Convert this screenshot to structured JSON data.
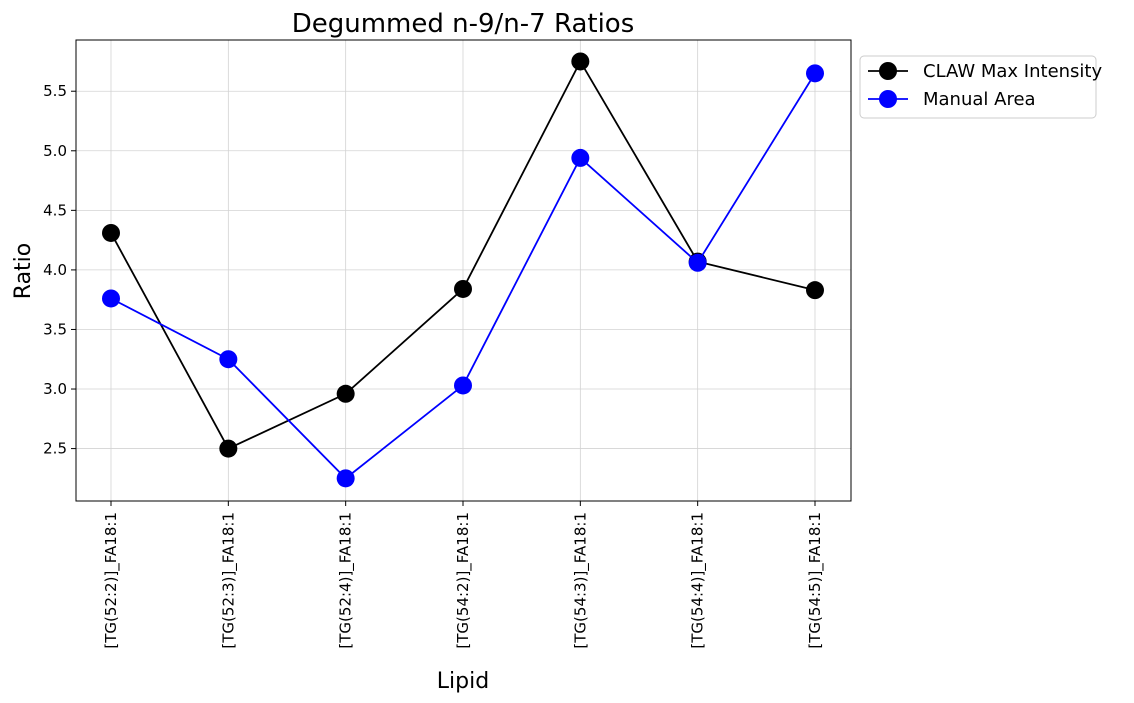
{
  "chart_data": {
    "type": "line",
    "title": "Degummed n-9/n-7 Ratios",
    "xlabel": "Lipid",
    "ylabel": "Ratio",
    "categories": [
      "[TG(52:2)]_FA18:1",
      "[TG(52:3)]_FA18:1",
      "[TG(52:4)]_FA18:1",
      "[TG(54:2)]_FA18:1",
      "[TG(54:3)]_FA18:1",
      "[TG(54:4)]_FA18:1",
      "[TG(54:5)]_FA18:1"
    ],
    "series": [
      {
        "name": "CLAW Max Intensity",
        "color": "#000000",
        "values": [
          4.31,
          2.5,
          2.96,
          3.84,
          5.75,
          4.07,
          3.83
        ]
      },
      {
        "name": "Manual Area",
        "color": "#0000ff",
        "values": [
          3.76,
          3.25,
          2.25,
          3.03,
          4.94,
          4.06,
          5.65
        ]
      }
    ],
    "ylim": [
      2.06,
      5.93
    ],
    "yticks": [
      "2.5",
      "3.0",
      "3.5",
      "4.0",
      "4.5",
      "5.0",
      "5.5"
    ],
    "grid": true,
    "legend": "outside-upper-right",
    "marker": "circle"
  }
}
